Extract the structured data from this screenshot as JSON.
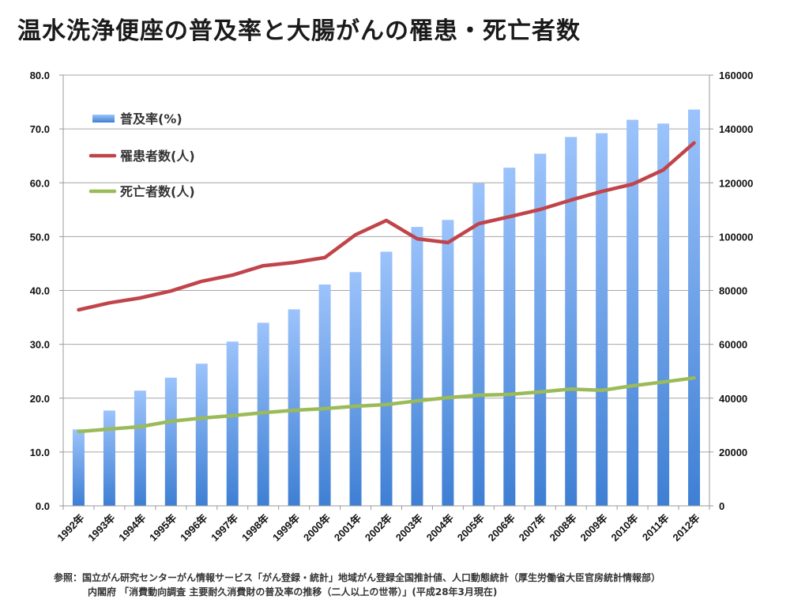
{
  "title": "温水洗浄便座の普及率と大腸がんの罹患・死亡者数",
  "chart_data": {
    "type": "bar",
    "title": "温水洗浄便座の普及率と大腸がんの罹患・死亡者数",
    "categories": [
      "1992年",
      "1993年",
      "1994年",
      "1995年",
      "1996年",
      "1997年",
      "1998年",
      "1999年",
      "2000年",
      "2001年",
      "2002年",
      "2003年",
      "2004年",
      "2005年",
      "2006年",
      "2007年",
      "2008年",
      "2009年",
      "2010年",
      "2011年",
      "2012年"
    ],
    "series": [
      {
        "name": "普及率(%)",
        "type": "bar",
        "axis": "left",
        "color": "#5b9be8",
        "values": [
          14.2,
          17.7,
          21.4,
          23.8,
          26.4,
          30.5,
          34.0,
          36.5,
          41.1,
          43.4,
          47.2,
          51.8,
          53.1,
          59.9,
          62.8,
          65.4,
          68.5,
          69.2,
          71.7,
          71.0,
          73.6
        ]
      },
      {
        "name": "罹患者数(人)",
        "type": "line",
        "axis": "right",
        "color": "#c0444a",
        "values": [
          72800,
          75400,
          77200,
          79800,
          83400,
          85700,
          89200,
          90400,
          92200,
          100700,
          106000,
          99200,
          97800,
          104800,
          107400,
          110100,
          113600,
          116800,
          119500,
          124800,
          134800
        ]
      },
      {
        "name": "死亡者数(人)",
        "type": "line",
        "axis": "right",
        "color": "#9bbb59",
        "values": [
          27600,
          28500,
          29400,
          31400,
          32600,
          33500,
          34600,
          35500,
          36100,
          37000,
          37600,
          39000,
          40200,
          41100,
          41400,
          42300,
          43400,
          42900,
          44600,
          46000,
          47500
        ]
      }
    ],
    "y_left": {
      "ylim": [
        0,
        80
      ],
      "ticks": [
        "0.0",
        "10.0",
        "20.0",
        "30.0",
        "40.0",
        "50.0",
        "60.0",
        "70.0",
        "80.0"
      ]
    },
    "y_right": {
      "ylim": [
        0,
        160000
      ],
      "ticks": [
        "0",
        "20000",
        "40000",
        "60000",
        "80000",
        "100000",
        "120000",
        "140000",
        "160000"
      ]
    },
    "xlabel": "",
    "ylabel": "",
    "grid": true,
    "legend": {
      "placement": "top-left",
      "entries": [
        "普及率(%)",
        "罹患者数(人)",
        "死亡者数(人)"
      ]
    }
  },
  "sources": {
    "line1": "参照：国立がん研究センターがん情報サービス「がん登録・統計」地域がん登録全国推計値、人口動態統計（厚生労働省大臣官房統計情報部）",
    "line2": "内閣府 「消費動向調査 主要耐久消費財の普及率の推移（二人以上の世帯）」(平成28年3月現在)"
  }
}
